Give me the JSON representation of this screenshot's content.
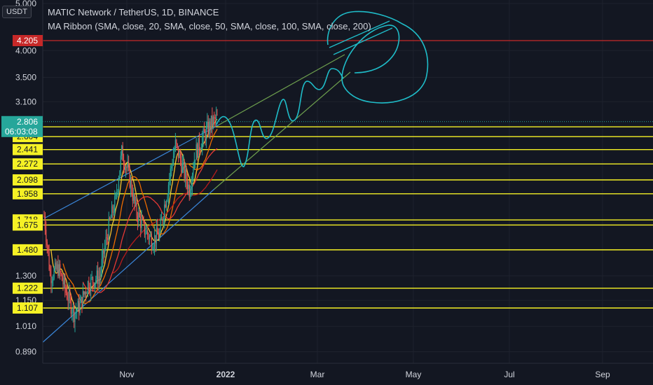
{
  "header": {
    "currency": "USDT",
    "title": "MATIC Network / TetherUS, 1D, BINANCE",
    "indicator": "MA Ribbon (SMA, close, 20, SMA, close, 50, SMA, close, 100, SMA, close, 200)"
  },
  "colors": {
    "background": "#131722",
    "grid": "#1e222d",
    "axis_text": "#d1d4dc",
    "up_candle": "#26a69a",
    "down_candle": "#ef5350",
    "level_line": "#f5f125",
    "level_label_bg": "#f5f125",
    "resistance": "#c62828",
    "drawing": "#1fbcc8",
    "channel_upper": "#3a86d9",
    "channel_projection": "#6ea04e",
    "ma20": "#f4c430",
    "ma50": "#ef6c00",
    "ma100": "#e53935",
    "ma200": "#b71c1c"
  },
  "chart_data": {
    "type": "candlestick",
    "symbol": "MATIC Network / TetherUS",
    "interval": "1D",
    "exchange": "BINANCE",
    "y_axis_ticks": [
      "5.000",
      "4.000",
      "3.500",
      "3.100",
      "1.300",
      "1.150",
      "1.010",
      "0.890"
    ],
    "ylim": [
      0.85,
      5.0
    ],
    "y_scale": "log",
    "x_axis_ticks": [
      "Nov",
      "2022",
      "Mar",
      "May",
      "Jul",
      "Sep"
    ],
    "current_price": "2.806",
    "countdown": "06:03:08",
    "resistance_level": "4.205",
    "support_levels": [
      "2.734",
      "2.604",
      "2.441",
      "2.272",
      "2.098",
      "1.958",
      "1.718",
      "1.675",
      "1.480",
      "1.222",
      "1.107"
    ],
    "moving_averages": [
      {
        "name": "SMA 20"
      },
      {
        "name": "SMA 50"
      },
      {
        "name": "SMA 100"
      },
      {
        "name": "SMA 200"
      }
    ]
  }
}
